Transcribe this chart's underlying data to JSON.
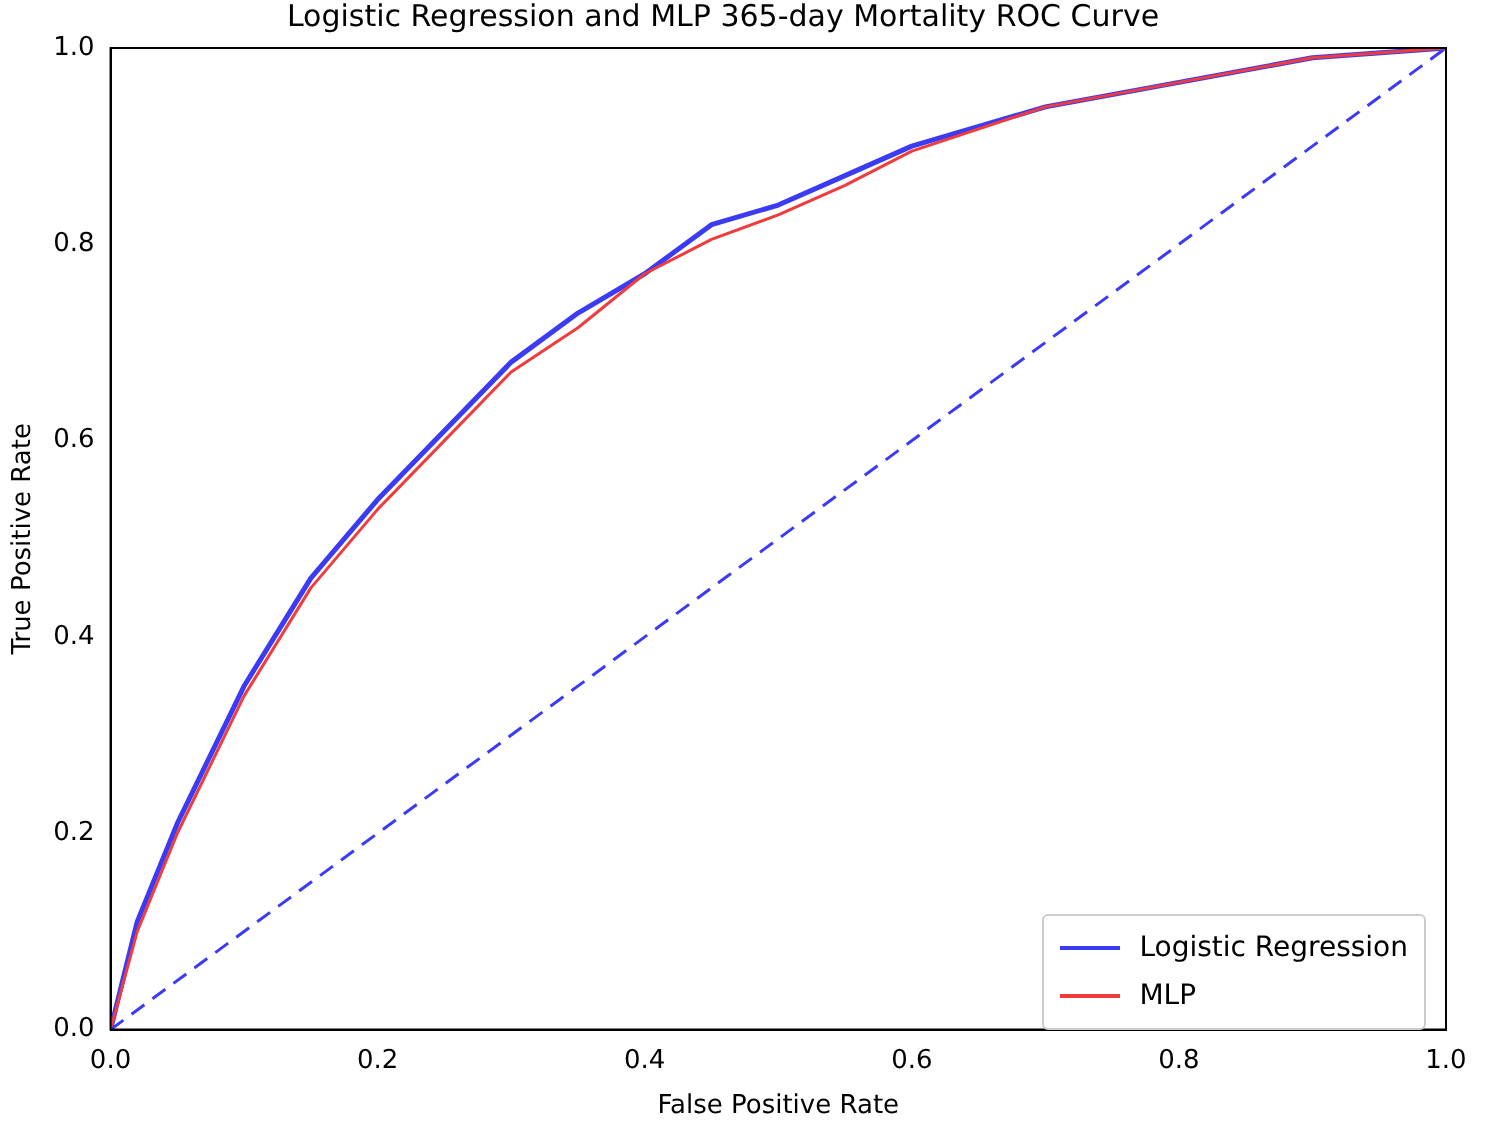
{
  "chart_data": {
    "type": "line",
    "title": "Logistic Regression and MLP 365-day Mortality ROC Curve",
    "xlabel": "False Positive Rate",
    "ylabel": "True Positive Rate",
    "xlim": [
      0,
      1
    ],
    "ylim": [
      0,
      1
    ],
    "xticks": [
      {
        "value": 0,
        "label": "0.0"
      },
      {
        "value": 0.2,
        "label": "0.2"
      },
      {
        "value": 0.4,
        "label": "0.4"
      },
      {
        "value": 0.6,
        "label": "0.6"
      },
      {
        "value": 0.8,
        "label": "0.8"
      },
      {
        "value": 1,
        "label": "1.0"
      }
    ],
    "yticks": [
      {
        "value": 0,
        "label": "0.0"
      },
      {
        "value": 0.2,
        "label": "0.2"
      },
      {
        "value": 0.4,
        "label": "0.4"
      },
      {
        "value": 0.6,
        "label": "0.6"
      },
      {
        "value": 0.8,
        "label": "0.8"
      },
      {
        "value": 1,
        "label": "1.0"
      }
    ],
    "grid": false,
    "legend": "bottom right",
    "marker": "none",
    "series": [
      {
        "name": "Logistic Regression",
        "color": "#3b3bf5",
        "x": [
          0,
          0.02,
          0.05,
          0.1,
          0.15,
          0.2,
          0.25,
          0.3,
          0.35,
          0.4,
          0.45,
          0.5,
          0.55,
          0.6,
          0.7,
          0.8,
          0.9,
          1
        ],
        "values": [
          0,
          0.11,
          0.21,
          0.35,
          0.46,
          0.54,
          0.61,
          0.68,
          0.73,
          0.77,
          0.82,
          0.84,
          0.87,
          0.9,
          0.94,
          0.965,
          0.99,
          1
        ]
      },
      {
        "name": "MLP",
        "color": "#f03c3c",
        "x": [
          0,
          0.02,
          0.05,
          0.1,
          0.15,
          0.2,
          0.25,
          0.3,
          0.35,
          0.4,
          0.45,
          0.5,
          0.55,
          0.6,
          0.7,
          0.8,
          0.9,
          1
        ],
        "values": [
          0,
          0.1,
          0.2,
          0.34,
          0.45,
          0.53,
          0.6,
          0.67,
          0.715,
          0.77,
          0.805,
          0.83,
          0.86,
          0.895,
          0.94,
          0.965,
          0.99,
          1
        ]
      },
      {
        "type": "line",
        "line_style": "dashed",
        "color": "#3b3bf5",
        "x": [
          0,
          1
        ],
        "values": [
          0,
          1
        ]
      }
    ]
  }
}
